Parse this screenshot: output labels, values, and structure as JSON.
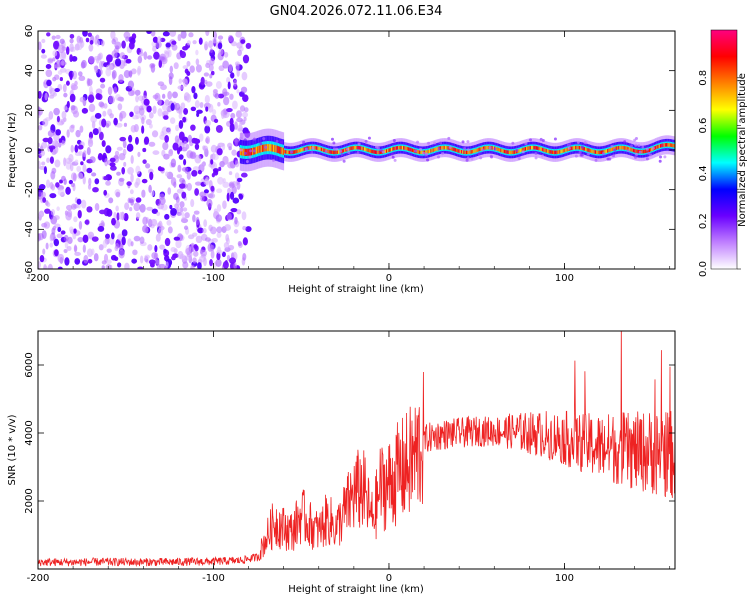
{
  "title": "GN04.2026.072.11.06.E34",
  "chart_data": [
    {
      "type": "heatmap",
      "title": "GN04.2026.072.11.06.E34",
      "xlabel": "Height of straight line (km)",
      "ylabel": "Frequency (Hz)",
      "xlim": [
        -200,
        163
      ],
      "ylim": [
        -60,
        60
      ],
      "x_ticks": [
        -200,
        -100,
        0,
        100
      ],
      "x_tick_labels": [
        "-200",
        "-100",
        "0",
        "100"
      ],
      "y_ticks": [
        -60,
        -40,
        -20,
        0,
        20,
        40,
        60
      ],
      "y_tick_labels": [
        "-60",
        "-40",
        "-20",
        "0",
        "20",
        "40",
        "60"
      ],
      "noise_region_x": [
        -200,
        -80
      ],
      "signal_band_x": [
        -85,
        163
      ],
      "signal_center_hz": 0,
      "colorbar": {
        "label": "Normalized spectral amplitude",
        "range": [
          0,
          1
        ],
        "ticks": [
          0.0,
          0.2,
          0.4,
          0.6,
          0.8
        ],
        "tick_labels": [
          "0.0",
          "0.2",
          "0.4",
          "0.6",
          "0.8"
        ],
        "colors": [
          "#ffffff",
          "#c080ff",
          "#6a00ff",
          "#0000ff",
          "#00ffff",
          "#00ff00",
          "#ffff00",
          "#ff8000",
          "#ff0000",
          "#ff0080"
        ]
      }
    },
    {
      "type": "line",
      "xlabel": "Height of straight line (km)",
      "ylabel": "SNR (10 * v/v)",
      "xlim": [
        -200,
        163
      ],
      "ylim": [
        0,
        7000
      ],
      "x_ticks": [
        -200,
        -100,
        0,
        100
      ],
      "x_tick_labels": [
        "-200",
        "-100",
        "0",
        "100"
      ],
      "y_ticks": [
        2000,
        4000,
        6000
      ],
      "y_tick_labels": [
        "2000",
        "4000",
        "6000"
      ],
      "line_color": "#ee2222",
      "series": [
        {
          "name": "SNR",
          "x": [
            -200,
            -180,
            -160,
            -140,
            -120,
            -100,
            -85,
            -75,
            -70,
            -65,
            -60,
            -55,
            -50,
            -45,
            -40,
            -35,
            -30,
            -25,
            -20,
            -15,
            -10,
            -8,
            -5,
            0,
            5,
            10,
            15,
            20,
            25,
            30,
            40,
            50,
            60,
            70,
            80,
            90,
            100,
            110,
            120,
            130,
            140,
            150,
            160,
            163
          ],
          "values": [
            200,
            200,
            210,
            200,
            210,
            220,
            250,
            350,
            900,
            1400,
            1200,
            1100,
            1600,
            1300,
            1100,
            1500,
            1200,
            1700,
            2200,
            2400,
            1500,
            1700,
            2400,
            2500,
            2800,
            3000,
            3300,
            3800,
            3900,
            3950,
            4000,
            4050,
            4050,
            4050,
            4000,
            3950,
            3850,
            3700,
            3600,
            3550,
            3450,
            3450,
            3400,
            3400
          ]
        }
      ]
    }
  ]
}
